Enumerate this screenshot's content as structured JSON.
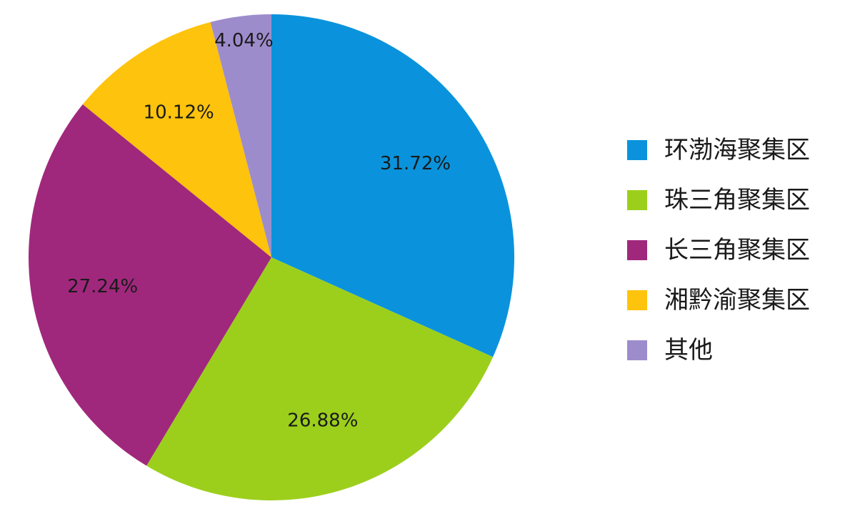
{
  "chart_data": {
    "type": "pie",
    "title": "",
    "categories": [
      "环渤海聚集区",
      "珠三角聚集区",
      "长三角聚集区",
      "湘黔渝聚集区",
      "其他"
    ],
    "values": [
      31.72,
      26.88,
      27.24,
      10.12,
      4.04
    ],
    "labels": [
      "31.72%",
      "26.88%",
      "27.24%",
      "10.12%",
      "4.04%"
    ],
    "colors": [
      "#0a93dc",
      "#9ccf1c",
      "#a0287c",
      "#fec30c",
      "#9d8ccc"
    ],
    "start": "12 o'clock, clockwise",
    "legend": "right"
  }
}
